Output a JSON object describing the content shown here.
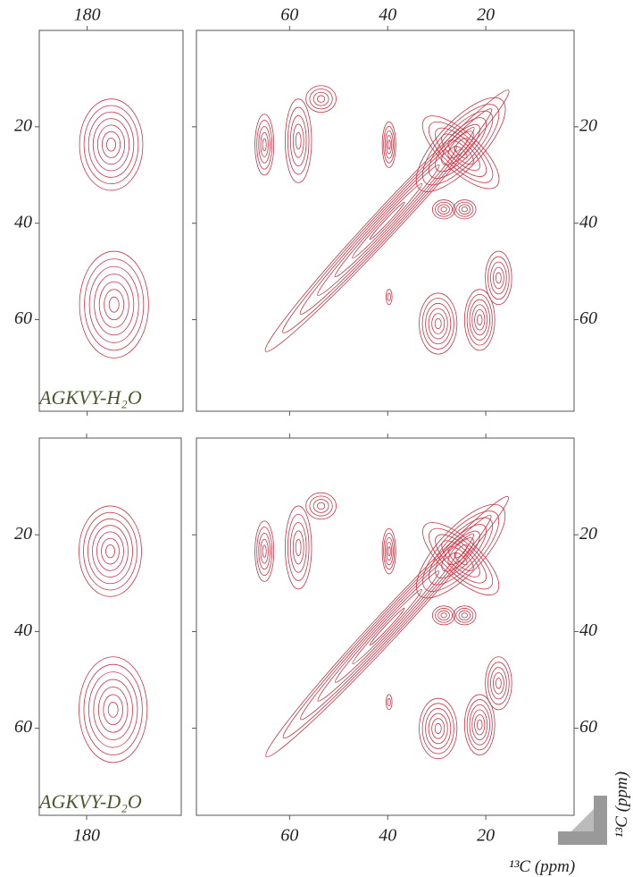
{
  "panels": [
    {
      "label": "AGKVY-H₂O",
      "xlim": [
        190,
        160
      ],
      "ylim": [
        0,
        79
      ],
      "xticks": [
        180
      ],
      "yticks": [
        20,
        40,
        60
      ]
    },
    {
      "xlim": [
        79,
        2
      ],
      "ylim": [
        0,
        79
      ],
      "xticks": [
        60,
        40,
        20
      ],
      "yticks": [
        20,
        40,
        60
      ]
    },
    {
      "label": "AGKVY-D₂O",
      "xlim": [
        190,
        160
      ],
      "ylim": [
        0,
        78
      ],
      "xticks": [
        180
      ],
      "yticks": [
        20,
        40,
        60
      ]
    },
    {
      "xlim": [
        79,
        2
      ],
      "ylim": [
        0,
        78
      ],
      "xticks": [
        60,
        40,
        20
      ],
      "yticks": [
        20,
        40,
        60
      ]
    }
  ],
  "x_axis_label": "¹³C (ppm)",
  "y_axis_label": "¹³C (ppm)"
}
